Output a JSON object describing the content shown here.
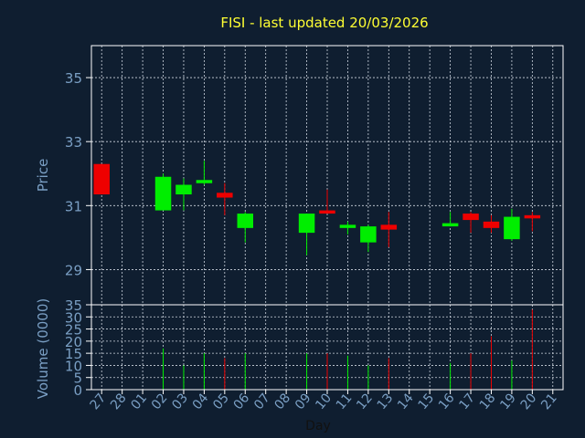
{
  "chart_data": {
    "type": "candlestick",
    "title": "FISI - last updated 20/03/2026",
    "xlabel": "Day",
    "days": [
      "27",
      "28",
      "01",
      "02",
      "03",
      "04",
      "05",
      "06",
      "07",
      "08",
      "09",
      "10",
      "11",
      "12",
      "13",
      "14",
      "15",
      "16",
      "17",
      "18",
      "19",
      "20",
      "21"
    ],
    "price_panel": {
      "ylabel": "Price",
      "ylim": [
        27.9,
        36.0
      ],
      "yticks": [
        29,
        31,
        33,
        35
      ],
      "grid": true
    },
    "volume_panel": {
      "ylabel": "Volume (0000)",
      "ylim": [
        0,
        35
      ],
      "yticks": [
        0,
        5,
        10,
        15,
        20,
        25,
        30,
        35
      ],
      "grid": true
    },
    "candles": [
      {
        "day": "27",
        "open": 32.3,
        "high": 32.3,
        "low": 31.35,
        "close": 31.35,
        "volume": null
      },
      {
        "day": "02",
        "open": 30.85,
        "high": 32.0,
        "low": 30.85,
        "close": 31.9,
        "volume": 17
      },
      {
        "day": "03",
        "open": 31.35,
        "high": 31.85,
        "low": 30.85,
        "close": 31.65,
        "volume": 10
      },
      {
        "day": "04",
        "open": 31.7,
        "high": 32.4,
        "low": 31.65,
        "close": 31.8,
        "volume": 15
      },
      {
        "day": "05",
        "open": 31.4,
        "high": 31.7,
        "low": 30.7,
        "close": 31.25,
        "volume": 13
      },
      {
        "day": "06",
        "open": 30.3,
        "high": 30.8,
        "low": 29.85,
        "close": 30.75,
        "volume": 15
      },
      {
        "day": "09",
        "open": 30.15,
        "high": 30.75,
        "low": 29.45,
        "close": 30.75,
        "volume": 15
      },
      {
        "day": "10",
        "open": 30.85,
        "high": 31.5,
        "low": 30.75,
        "close": 30.75,
        "volume": 15
      },
      {
        "day": "11",
        "open": 30.3,
        "high": 30.5,
        "low": 30.1,
        "close": 30.4,
        "volume": 14
      },
      {
        "day": "12",
        "open": 29.85,
        "high": 30.4,
        "low": 29.55,
        "close": 30.35,
        "volume": 10
      },
      {
        "day": "13",
        "open": 30.4,
        "high": 30.8,
        "low": 29.7,
        "close": 30.25,
        "volume": 13
      },
      {
        "day": "16",
        "open": 30.35,
        "high": 30.8,
        "low": 30.35,
        "close": 30.45,
        "volume": 11
      },
      {
        "day": "17",
        "open": 30.75,
        "high": 30.8,
        "low": 30.15,
        "close": 30.55,
        "volume": 15
      },
      {
        "day": "18",
        "open": 30.5,
        "high": 30.7,
        "low": 30.15,
        "close": 30.3,
        "volume": 22
      },
      {
        "day": "19",
        "open": 29.95,
        "high": 30.9,
        "low": 29.9,
        "close": 30.65,
        "volume": 12
      },
      {
        "day": "20",
        "open": 30.7,
        "high": 30.8,
        "low": 30.2,
        "close": 30.6,
        "volume": 33
      }
    ]
  },
  "colors": {
    "background": "#0f1e30",
    "up": "#00ee00",
    "down": "#ee0000",
    "grid": "#cfd6e0",
    "axis_text": "#7a9fc4",
    "title": "#ffff33",
    "frame": "#ffffff"
  }
}
